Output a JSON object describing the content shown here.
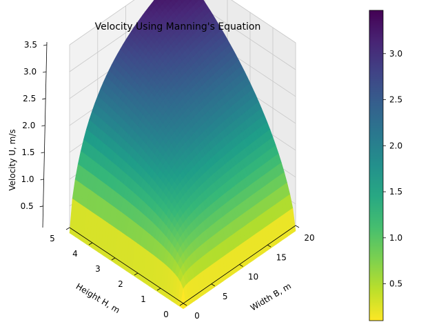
{
  "chart_data": {
    "type": "surface3d",
    "title": "Velocity Using Manning's Equation",
    "xlabel": "Width B, m",
    "ylabel": "Height H, m",
    "zlabel": "Velocity U, m/s",
    "xlim": [
      0,
      20
    ],
    "ylim": [
      0,
      5
    ],
    "zlim": [
      0.1,
      3.5
    ],
    "x_ticks": [
      "0",
      "5",
      "10",
      "15",
      "20"
    ],
    "y_ticks": [
      "0",
      "1",
      "2",
      "3",
      "4",
      "5"
    ],
    "z_ticks": [
      "0.5",
      "1.0",
      "1.5",
      "2.0",
      "2.5",
      "3.0",
      "3.5"
    ],
    "colormap": "viridis_r",
    "colorbar": {
      "range": [
        0.1,
        3.47
      ],
      "ticks": [
        "0.5",
        "1.0",
        "1.5",
        "2.0",
        "2.5",
        "3.0"
      ]
    },
    "surface": {
      "description": "U = (1/n) * R^(2/3) * S^(1/2), R = B*H/(B+2H)",
      "x_range": [
        0,
        20
      ],
      "y_range": [
        0,
        5
      ],
      "z_max": 3.47
    },
    "grid": true
  }
}
